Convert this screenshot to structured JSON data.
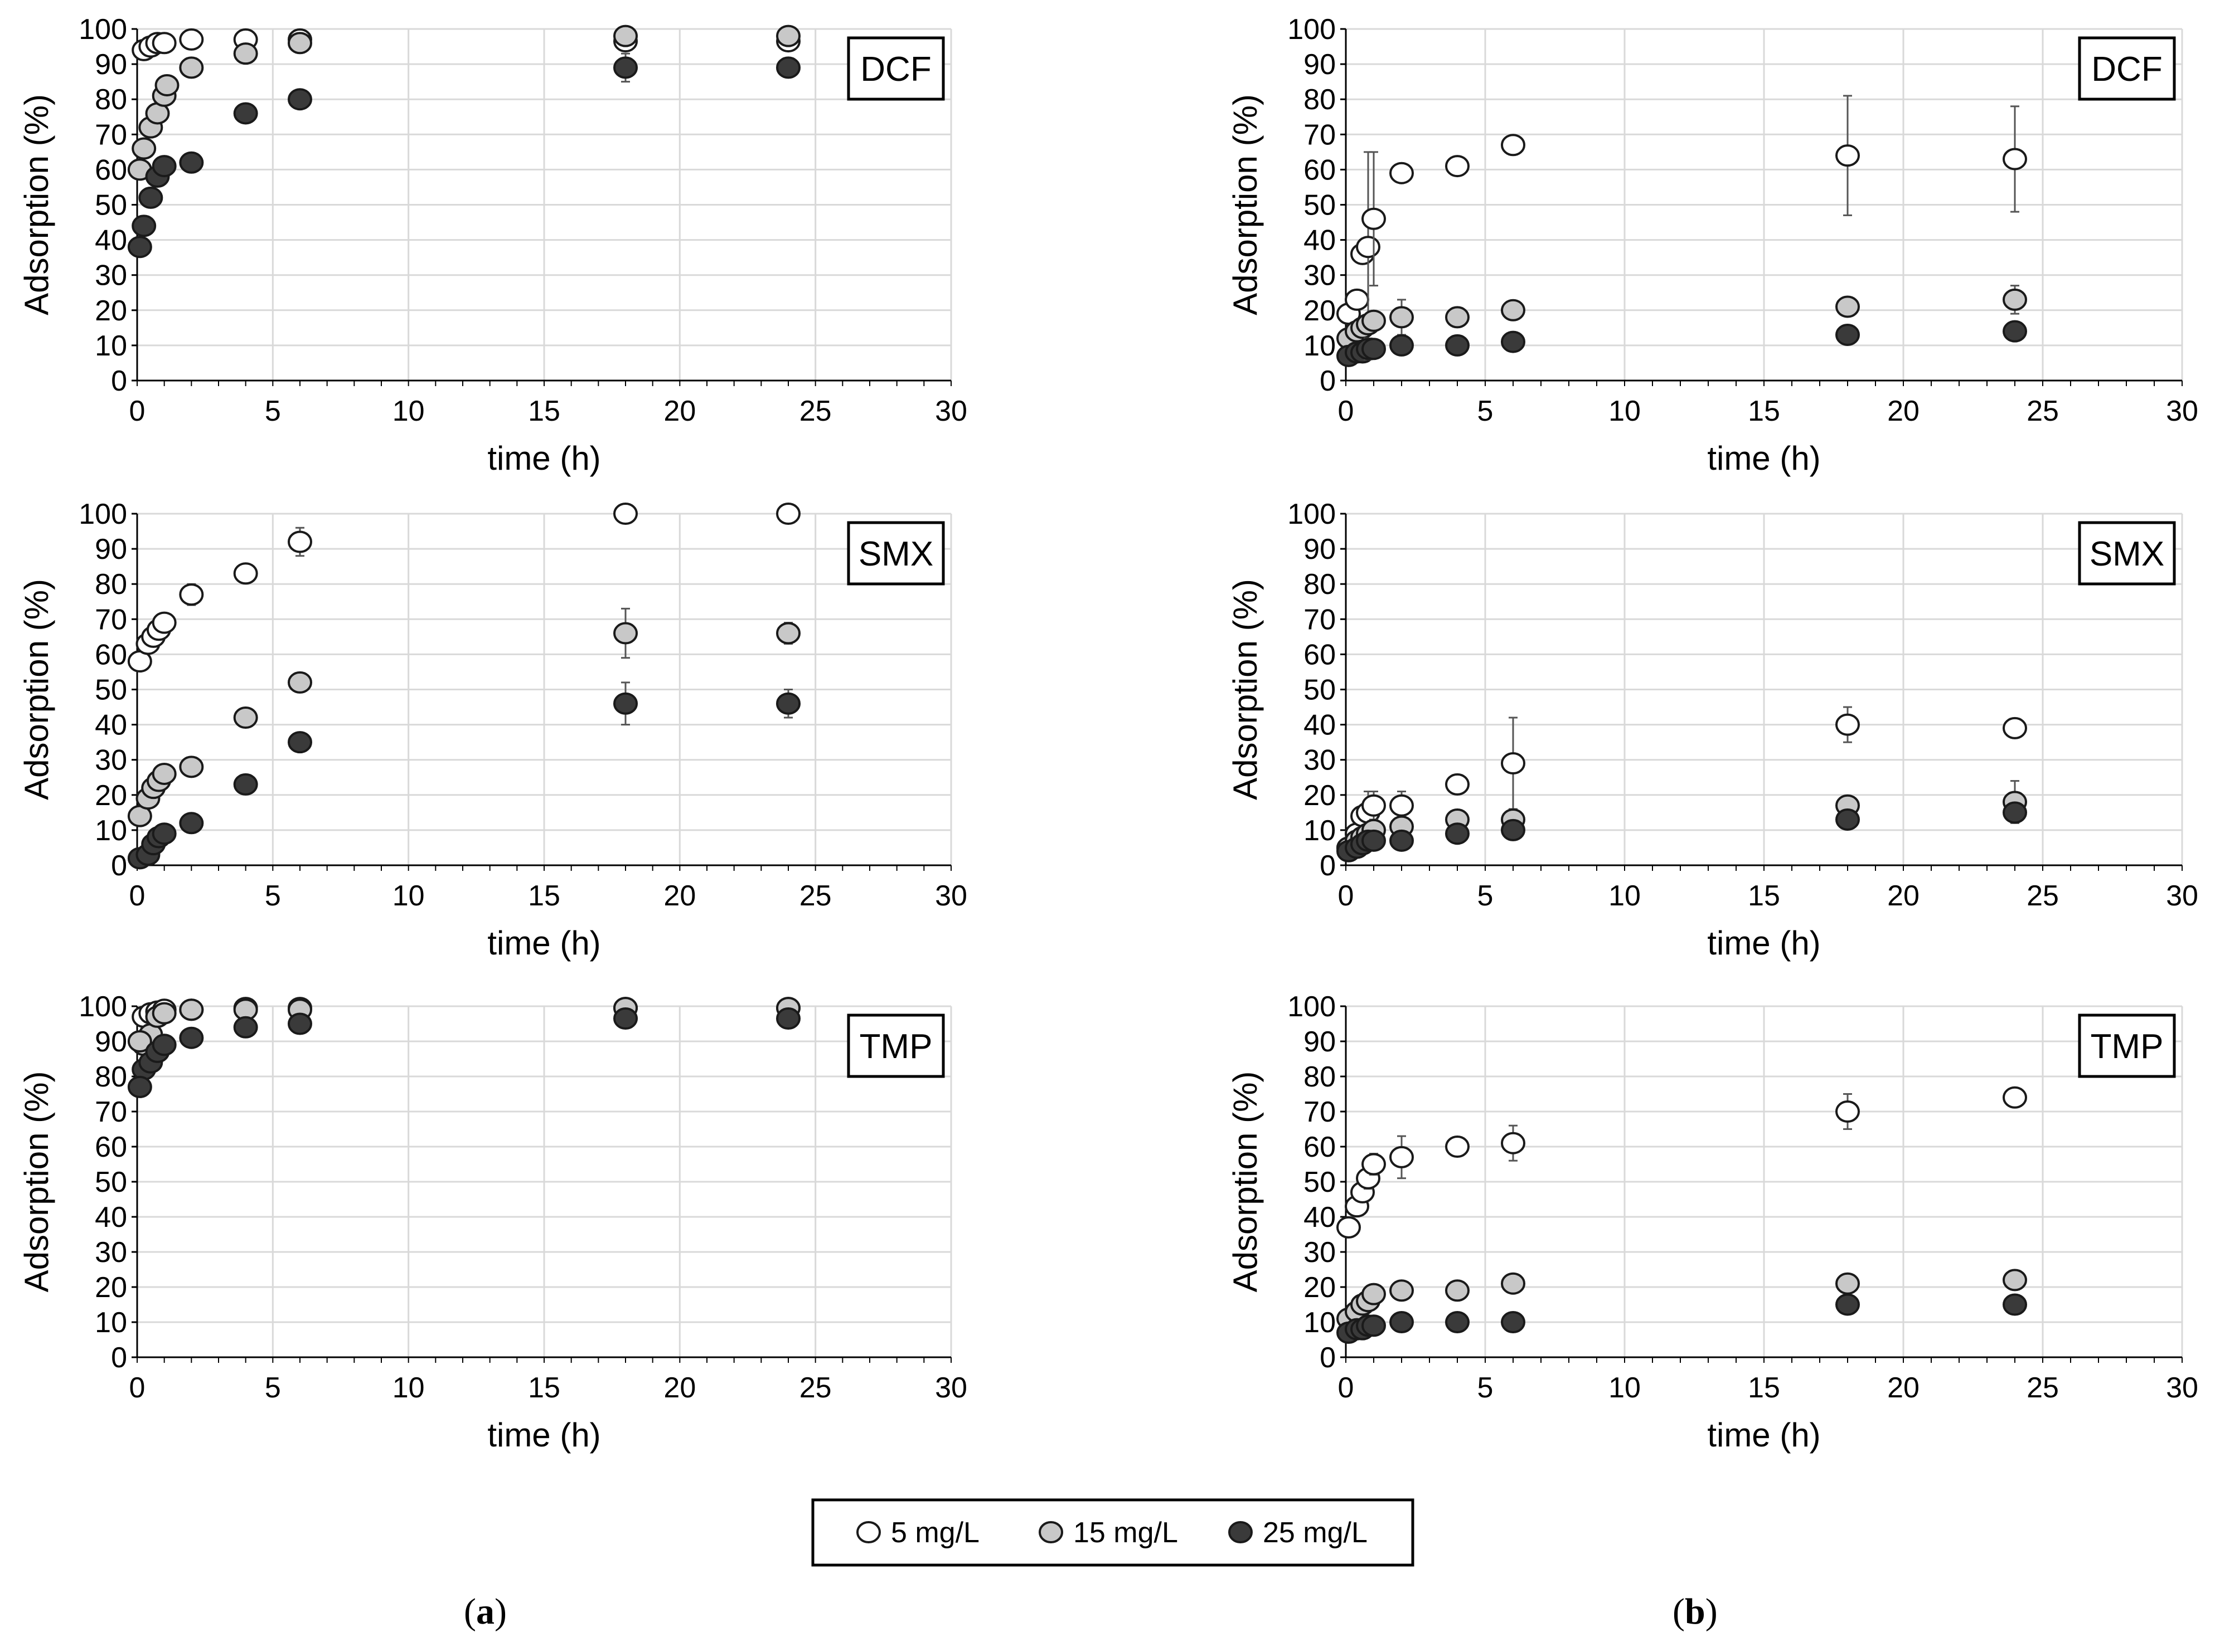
{
  "panel_labels": {
    "a": "a",
    "b": "b"
  },
  "legend": {
    "entries": [
      {
        "label": "5 mg/L",
        "fill": "#ffffff"
      },
      {
        "label": "15 mg/L",
        "fill": "#c8c8c8"
      },
      {
        "label": "25 mg/L",
        "fill": "#3a3a3a"
      }
    ]
  },
  "colors": {
    "marker_edge": "#1a1a1a",
    "grid": "#d9d9d9",
    "errorbar": "#555555"
  },
  "chart_data": [
    {
      "id": "a-DCF",
      "type": "scatter",
      "tag": "DCF",
      "panel": "a",
      "xlabel": "time (h)",
      "ylabel": "Adsorption (%)",
      "xlim": [
        0,
        30
      ],
      "ylim": [
        0,
        100
      ],
      "xticks": [
        0,
        5,
        10,
        15,
        20,
        25,
        30
      ],
      "yticks": [
        0,
        10,
        20,
        30,
        40,
        50,
        60,
        70,
        80,
        90,
        100
      ],
      "x": [
        0.25,
        0.5,
        0.75,
        1,
        2,
        4,
        6,
        18,
        24
      ],
      "series": [
        {
          "name": "5 mg/L",
          "values": [
            94,
            95,
            96,
            96,
            97,
            97,
            97,
            96.5,
            96.5
          ],
          "err": [
            1,
            1,
            1,
            1,
            1,
            1,
            1,
            1,
            1
          ]
        },
        {
          "name": "15 mg/L",
          "values": [
            66,
            72,
            76,
            81,
            89,
            93,
            96,
            98,
            98
          ],
          "err": [
            1,
            1,
            1,
            1,
            1,
            1,
            1,
            1,
            1
          ]
        },
        {
          "name": "25 mg/L",
          "values": [
            44,
            52,
            58,
            61,
            62,
            76,
            80,
            89,
            89
          ],
          "err": [
            1,
            1,
            1,
            1,
            1,
            1,
            1,
            4,
            2
          ]
        }
      ],
      "series_extra": [
        {
          "series": "15 mg/L",
          "x": [
            0.1,
            1.1
          ],
          "values": [
            60,
            84
          ]
        },
        {
          "series": "25 mg/L",
          "x": [
            0.1
          ],
          "values": [
            38
          ]
        }
      ]
    },
    {
      "id": "a-SMX",
      "type": "scatter",
      "tag": "SMX",
      "panel": "a",
      "xlabel": "time (h)",
      "ylabel": "Adsorption (%)",
      "xlim": [
        0,
        30
      ],
      "ylim": [
        0,
        100
      ],
      "xticks": [
        0,
        5,
        10,
        15,
        20,
        25,
        30
      ],
      "yticks": [
        0,
        10,
        20,
        30,
        40,
        50,
        60,
        70,
        80,
        90,
        100
      ],
      "x": [
        0.1,
        0.4,
        0.6,
        0.8,
        1,
        2,
        4,
        6,
        18,
        24
      ],
      "series": [
        {
          "name": "5 mg/L",
          "values": [
            58,
            63,
            65,
            67,
            69,
            77,
            83,
            92,
            100,
            100
          ],
          "err": [
            1,
            1,
            1,
            1,
            2,
            3,
            1,
            4,
            0,
            0
          ]
        },
        {
          "name": "15 mg/L",
          "values": [
            14,
            19,
            22,
            24,
            26,
            28,
            42,
            52,
            66,
            66
          ],
          "err": [
            1,
            1,
            1,
            1,
            1,
            1,
            1,
            1,
            7,
            3
          ]
        },
        {
          "name": "25 mg/L",
          "values": [
            2,
            3,
            6,
            8,
            9,
            12,
            23,
            35,
            46,
            46
          ],
          "err": [
            1,
            1,
            1,
            1,
            1,
            1,
            1,
            1,
            6,
            4
          ]
        }
      ]
    },
    {
      "id": "a-TMP",
      "type": "scatter",
      "tag": "TMP",
      "panel": "a",
      "xlabel": "time (h)",
      "ylabel": "Adsorption (%)",
      "xlim": [
        0,
        30
      ],
      "ylim": [
        0,
        100
      ],
      "xticks": [
        0,
        5,
        10,
        15,
        20,
        25,
        30
      ],
      "yticks": [
        0,
        10,
        20,
        30,
        40,
        50,
        60,
        70,
        80,
        90,
        100
      ],
      "x": [
        0.25,
        0.5,
        0.75,
        1,
        2,
        4,
        6,
        18,
        24
      ],
      "series": [
        {
          "name": "5 mg/L",
          "values": [
            97,
            98,
            98.5,
            99,
            99,
            99.5,
            99.5,
            99.5,
            99.5
          ],
          "err": [
            1,
            1,
            1,
            1,
            1,
            1,
            1,
            1,
            1
          ]
        },
        {
          "name": "15 mg/L",
          "values": [
            89,
            92,
            97,
            98,
            99,
            99,
            99,
            99.5,
            99.5
          ],
          "err": [
            1,
            1,
            1,
            1,
            1,
            1,
            1,
            1,
            1
          ]
        },
        {
          "name": "25 mg/L",
          "values": [
            82,
            84,
            87,
            89,
            91,
            94,
            95,
            96.5,
            96.5
          ],
          "err": [
            1,
            1,
            1,
            1,
            1,
            1,
            1,
            1,
            1
          ]
        }
      ],
      "series_extra": [
        {
          "series": "15 mg/L",
          "x": [
            0.1
          ],
          "values": [
            90
          ]
        },
        {
          "series": "25 mg/L",
          "x": [
            0.1
          ],
          "values": [
            77
          ]
        }
      ]
    },
    {
      "id": "b-DCF",
      "type": "scatter",
      "tag": "DCF",
      "panel": "b",
      "xlabel": "time (h)",
      "ylabel": "Adsorption (%)",
      "xlim": [
        0,
        30
      ],
      "ylim": [
        0,
        100
      ],
      "xticks": [
        0,
        5,
        10,
        15,
        20,
        25,
        30
      ],
      "yticks": [
        0,
        10,
        20,
        30,
        40,
        50,
        60,
        70,
        80,
        90,
        100
      ],
      "x": [
        0.1,
        0.4,
        0.6,
        0.8,
        1,
        2,
        4,
        6,
        18,
        24
      ],
      "series": [
        {
          "name": "5 mg/L",
          "values": [
            19,
            23,
            36,
            38,
            46,
            59,
            61,
            67,
            64,
            63
          ],
          "err": [
            1,
            2,
            2,
            27,
            19,
            1,
            1,
            1,
            17,
            15
          ]
        },
        {
          "name": "15 mg/L",
          "values": [
            12,
            14,
            15,
            16,
            17,
            18,
            18,
            20,
            21,
            23
          ],
          "err": [
            1,
            1,
            1,
            1,
            2,
            5,
            1,
            1,
            1,
            4
          ]
        },
        {
          "name": "25 mg/L",
          "values": [
            7,
            8,
            8,
            9,
            9,
            10,
            10,
            11,
            13,
            14
          ],
          "err": [
            1,
            1,
            1,
            3,
            1,
            1,
            1,
            1,
            1,
            1
          ]
        }
      ]
    },
    {
      "id": "b-SMX",
      "type": "scatter",
      "tag": "SMX",
      "panel": "b",
      "xlabel": "time (h)",
      "ylabel": "Adsorption (%)",
      "xlim": [
        0,
        30
      ],
      "ylim": [
        0,
        100
      ],
      "xticks": [
        0,
        5,
        10,
        15,
        20,
        25,
        30
      ],
      "yticks": [
        0,
        10,
        20,
        30,
        40,
        50,
        60,
        70,
        80,
        90,
        100
      ],
      "x": [
        0.1,
        0.4,
        0.6,
        0.8,
        1,
        2,
        4,
        6,
        18,
        24
      ],
      "series": [
        {
          "name": "5 mg/L",
          "values": [
            5,
            9,
            14,
            15,
            17,
            17,
            23,
            29,
            40,
            39
          ],
          "err": [
            1,
            2,
            2,
            6,
            4,
            4,
            1,
            13,
            5,
            1
          ]
        },
        {
          "name": "15 mg/L",
          "values": [
            5,
            7,
            8,
            9,
            10,
            11,
            13,
            13,
            17,
            18
          ],
          "err": [
            1,
            1,
            1,
            1,
            2,
            2,
            1,
            2,
            1,
            6
          ]
        },
        {
          "name": "25 mg/L",
          "values": [
            4,
            5,
            6,
            7,
            7,
            7,
            9,
            10,
            13,
            15
          ],
          "err": [
            1,
            1,
            1,
            1,
            1,
            1,
            1,
            1,
            1,
            1
          ]
        }
      ]
    },
    {
      "id": "b-TMP",
      "type": "scatter",
      "tag": "TMP",
      "panel": "b",
      "xlabel": "time (h)",
      "ylabel": "Adsorption (%)",
      "xlim": [
        0,
        30
      ],
      "ylim": [
        0,
        100
      ],
      "xticks": [
        0,
        5,
        10,
        15,
        20,
        25,
        30
      ],
      "yticks": [
        0,
        10,
        20,
        30,
        40,
        50,
        60,
        70,
        80,
        90,
        100
      ],
      "x": [
        0.1,
        0.4,
        0.6,
        0.8,
        1,
        2,
        4,
        6,
        18,
        24
      ],
      "series": [
        {
          "name": "5 mg/L",
          "values": [
            37,
            43,
            47,
            51,
            55,
            57,
            60,
            61,
            70,
            74
          ],
          "err": [
            2,
            2,
            2,
            3,
            3,
            6,
            1,
            5,
            5,
            1
          ]
        },
        {
          "name": "15 mg/L",
          "values": [
            11,
            13,
            15,
            16,
            18,
            19,
            19,
            21,
            21,
            22
          ],
          "err": [
            1,
            1,
            1,
            1,
            1,
            1,
            1,
            1,
            1,
            1
          ]
        },
        {
          "name": "25 mg/L",
          "values": [
            7,
            8,
            8,
            9,
            9,
            10,
            10,
            10,
            15,
            15
          ],
          "err": [
            1,
            1,
            1,
            1,
            1,
            1,
            1,
            1,
            1,
            1
          ]
        }
      ]
    }
  ]
}
